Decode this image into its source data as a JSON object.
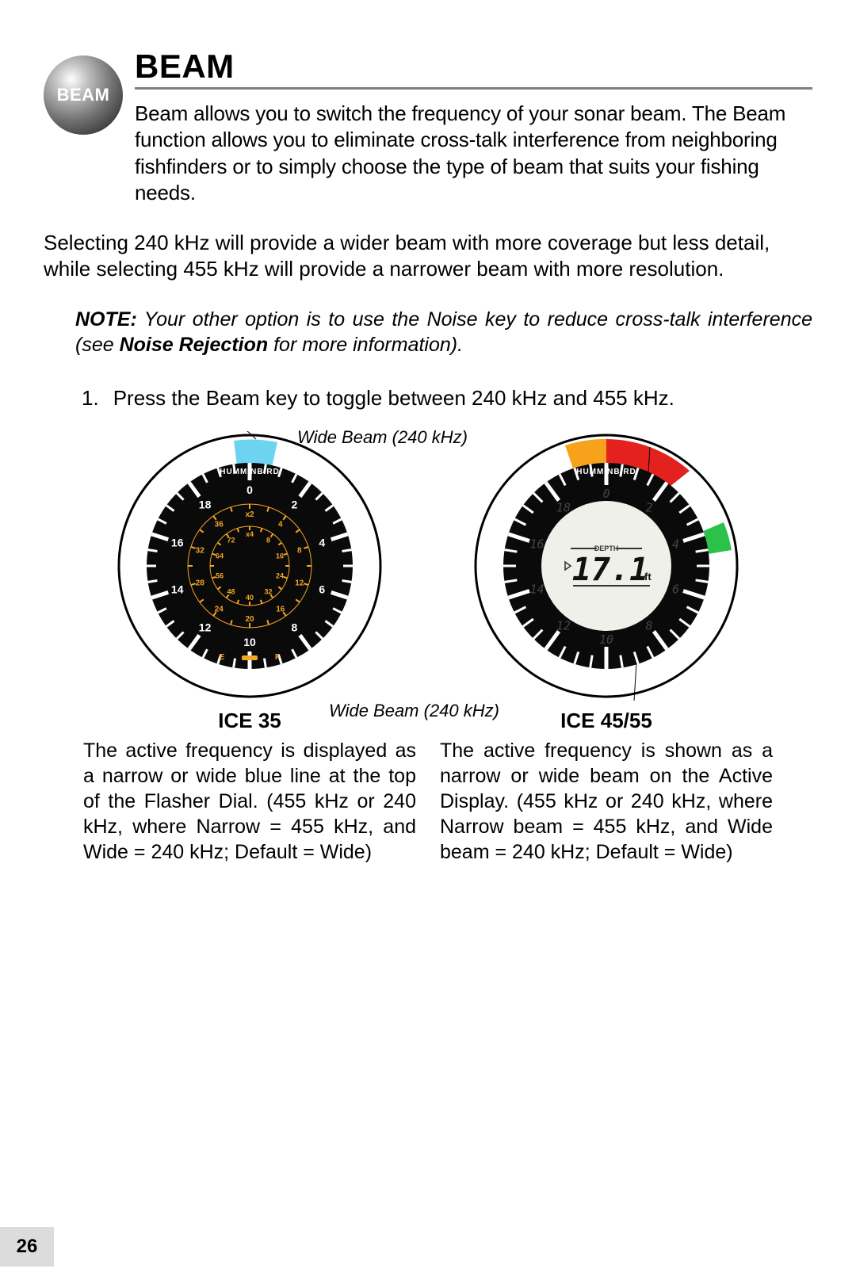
{
  "header": {
    "button_label": "BEAM",
    "title": "BEAM",
    "intro": "Beam allows you to switch the frequency of your sonar beam. The Beam function allows you to eliminate cross-talk interference from neighboring fishfinders or to simply choose the type of beam that suits your fishing needs."
  },
  "para2": "Selecting 240 kHz will provide a wider beam with more coverage but less detail, while selecting 455 kHz will provide a narrower beam with more resolution.",
  "note": {
    "bold1": "NOTE:",
    "text1": " Your other option is to use the Noise key to reduce cross-talk interference (see ",
    "bold2": "Noise Rejection",
    "text2": " for more information)."
  },
  "step1_num": "1.",
  "step1_text": "Press the Beam key to toggle between 240 kHz and 455 kHz.",
  "callouts": {
    "top": "Wide Beam (240 kHz)",
    "mid": "Wide Beam (240 kHz)"
  },
  "dial_left": {
    "brand": "HUMMINBIRD",
    "outer_numbers": [
      "0",
      "2",
      "4",
      "6",
      "8",
      "10",
      "12",
      "14",
      "16",
      "18"
    ],
    "inner_a": [
      "x2",
      "4",
      "8",
      "12",
      "16",
      "20",
      "24",
      "28",
      "32",
      "36"
    ],
    "inner_b": [
      "x4",
      "8",
      "16",
      "24",
      "32",
      "40",
      "48",
      "56",
      "64",
      "72"
    ],
    "e_label": "E",
    "f_label": "F",
    "beam_color": "#6ed3f0",
    "tick_color": "#ffffff",
    "inner_color": "#f5a623",
    "face_color": "#0a0a0a",
    "ring_gap": "#ffffff",
    "stroke": "#000000"
  },
  "dial_right": {
    "brand": "HUMMINBIRD",
    "numbers": [
      "0",
      "2",
      "4",
      "6",
      "8",
      "10",
      "12",
      "14",
      "16",
      "18"
    ],
    "depth_label": "DEPTH",
    "depth_value": "17.1",
    "depth_unit": "ft",
    "red": "#e3221f",
    "orange": "#f6a21b",
    "green": "#2bc24b",
    "lcd_bg": "#f0f0ea",
    "face_color": "#0a0a0a",
    "tick_color": "#ffffff",
    "stroke": "#000000"
  },
  "captions": {
    "left_title": "ICE 35",
    "left_body": "The active frequency is displayed as a narrow or wide blue line at the top of the Flasher Dial. (455 kHz or 240 kHz, where Narrow = 455 kHz, and Wide = 240 kHz; Default = Wide)",
    "right_title": "ICE 45/55",
    "right_body": "The active frequency is shown as a narrow or wide beam on the Active Display. (455 kHz or 240 kHz, where Narrow beam = 455 kHz, and Wide beam = 240 kHz; Default  = Wide)"
  },
  "page_number": "26"
}
